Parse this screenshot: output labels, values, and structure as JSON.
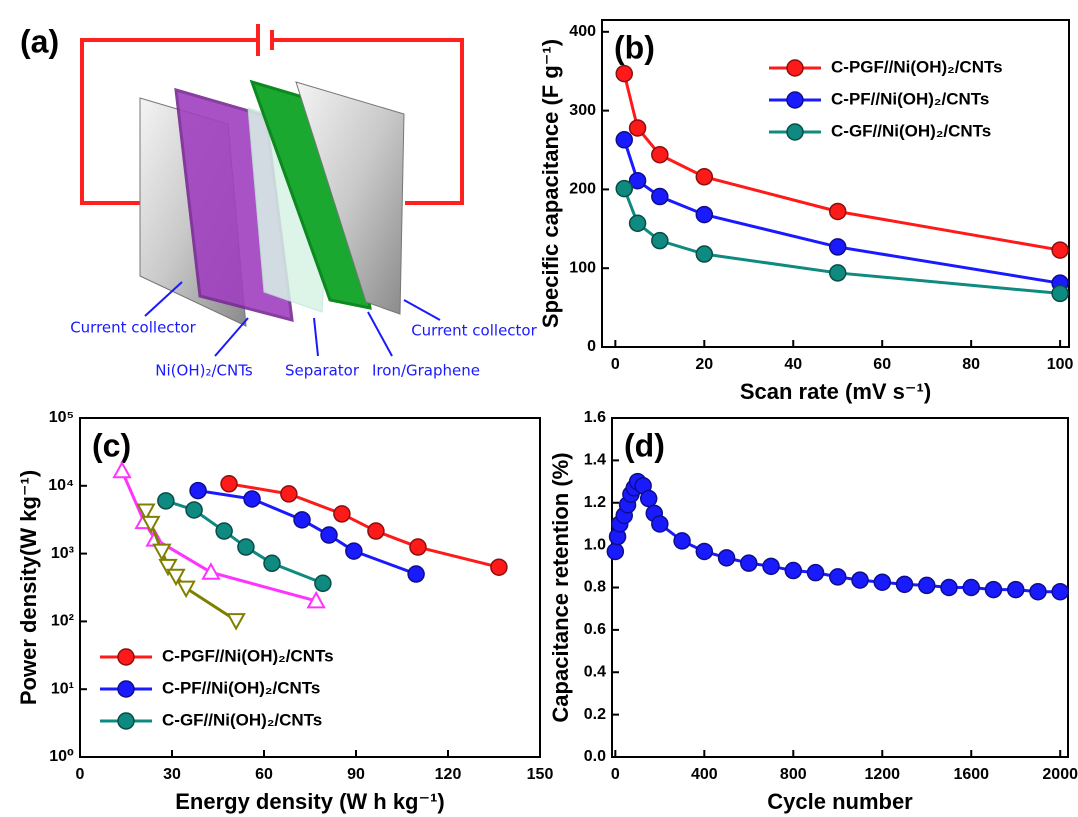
{
  "diagram": {
    "panel_label": "(a)",
    "labels": [
      "Current collector",
      "Ni(OH)₂/CNTs",
      "Separator",
      "Iron/Graphene",
      "Current collector"
    ]
  },
  "chart_data": [
    {
      "type": "line",
      "panel_label": "(b)",
      "xlabel": "Scan rate (mV s⁻¹)",
      "ylabel": "Specific capacitance (F g⁻¹)",
      "x": [
        2,
        5,
        10,
        20,
        50,
        100
      ],
      "series": [
        {
          "name": "C-PGF//Ni(OH)₂/CNTs",
          "color": "#ff1a1a",
          "marker": "circle",
          "values": [
            347,
            278,
            244,
            216,
            172,
            123
          ]
        },
        {
          "name": "C-PF//Ni(OH)₂/CNTs",
          "color": "#1a1aff",
          "marker": "circle",
          "values": [
            263,
            211,
            191,
            168,
            127,
            81
          ]
        },
        {
          "name": "C-GF//Ni(OH)₂/CNTs",
          "color": "#0f8a80",
          "marker": "circle",
          "values": [
            201,
            157,
            135,
            118,
            94,
            68
          ]
        }
      ],
      "xlim": [
        -3,
        102
      ],
      "ylim": [
        0,
        415
      ],
      "xticks": [
        0,
        20,
        40,
        60,
        80,
        100
      ],
      "yticks": [
        0,
        100,
        200,
        300,
        400
      ],
      "legend": "upper right"
    },
    {
      "type": "line",
      "panel_label": "(c)",
      "xlabel": "Energy density (W h kg⁻¹)",
      "ylabel": "Power density(W kg⁻¹)",
      "log_y": true,
      "series": [
        {
          "name": "C-PGF//Ni(OH)₂/CNTs",
          "color": "#ff1a1a",
          "marker": "circle",
          "x": [
            48.6,
            68.1,
            85.4,
            96.5,
            110.2,
            136.6
          ],
          "values": [
            10700,
            7600,
            3850,
            2150,
            1250,
            630
          ]
        },
        {
          "name": "C-PF//Ni(OH)₂/CNTs",
          "color": "#1a1aff",
          "marker": "circle",
          "x": [
            38.5,
            56.1,
            72.4,
            81.2,
            89.3,
            109.6
          ],
          "values": [
            8500,
            6400,
            3150,
            1880,
            1090,
            500
          ]
        },
        {
          "name": "C-GF//Ni(OH)₂/CNTs",
          "color": "#0f8a80",
          "marker": "circle",
          "x": [
            28.0,
            37.2,
            47.0,
            54.1,
            62.6,
            79.2
          ],
          "values": [
            6000,
            4400,
            2150,
            1250,
            720,
            365
          ]
        },
        {
          "color": "#ff33ff",
          "marker": "triangle-up",
          "x": [
            13.7,
            20.9,
            24.5,
            42.7,
            77.0
          ],
          "values": [
            16600,
            2950,
            1630,
            530,
            200
          ]
        },
        {
          "color": "#808000",
          "marker": "triangle-down",
          "x": [
            21.5,
            23.1,
            26.7,
            28.7,
            31.3,
            34.6,
            50.9
          ],
          "values": [
            4260,
            2800,
            1090,
            650,
            465,
            310,
            103
          ]
        }
      ],
      "xlim": [
        0,
        150
      ],
      "ylim": [
        1,
        100000
      ],
      "xticks": [
        0,
        30,
        60,
        90,
        120,
        150
      ],
      "yticks": [
        {
          "value": 1,
          "label": "10⁰"
        },
        {
          "value": 10,
          "label": "10¹"
        },
        {
          "value": 100,
          "label": "10²"
        },
        {
          "value": 1000,
          "label": "10³"
        },
        {
          "value": 10000,
          "label": "10⁴"
        },
        {
          "value": 100000,
          "label": "10⁵"
        }
      ],
      "legend": "lower left"
    },
    {
      "type": "line",
      "panel_label": "(d)",
      "xlabel": "Cycle number",
      "ylabel": "Capacitance retention (%)",
      "x": [
        0,
        10,
        20,
        40,
        55,
        70,
        85,
        100,
        125,
        150,
        175,
        200,
        300,
        400,
        500,
        600,
        700,
        800,
        900,
        1000,
        1100,
        1200,
        1300,
        1400,
        1500,
        1600,
        1700,
        1800,
        1900,
        2000
      ],
      "series": [
        {
          "color": "#1a1aff",
          "marker": "circle",
          "values": [
            0.97,
            1.04,
            1.1,
            1.14,
            1.19,
            1.24,
            1.27,
            1.3,
            1.28,
            1.22,
            1.15,
            1.1,
            1.02,
            0.97,
            0.94,
            0.915,
            0.9,
            0.88,
            0.87,
            0.85,
            0.835,
            0.825,
            0.815,
            0.81,
            0.8,
            0.8,
            0.79,
            0.79,
            0.78,
            0.78
          ]
        }
      ],
      "xlim": [
        -15,
        2035
      ],
      "ylim": [
        0,
        1.6
      ],
      "xticks": [
        0,
        400,
        800,
        1200,
        1600,
        2000
      ],
      "yticks": [
        {
          "value": 0,
          "label": "0.0"
        },
        0.2,
        0.4,
        0.6,
        0.8,
        {
          "value": 1,
          "label": "1.0"
        },
        1.2,
        1.4,
        1.6
      ]
    }
  ]
}
